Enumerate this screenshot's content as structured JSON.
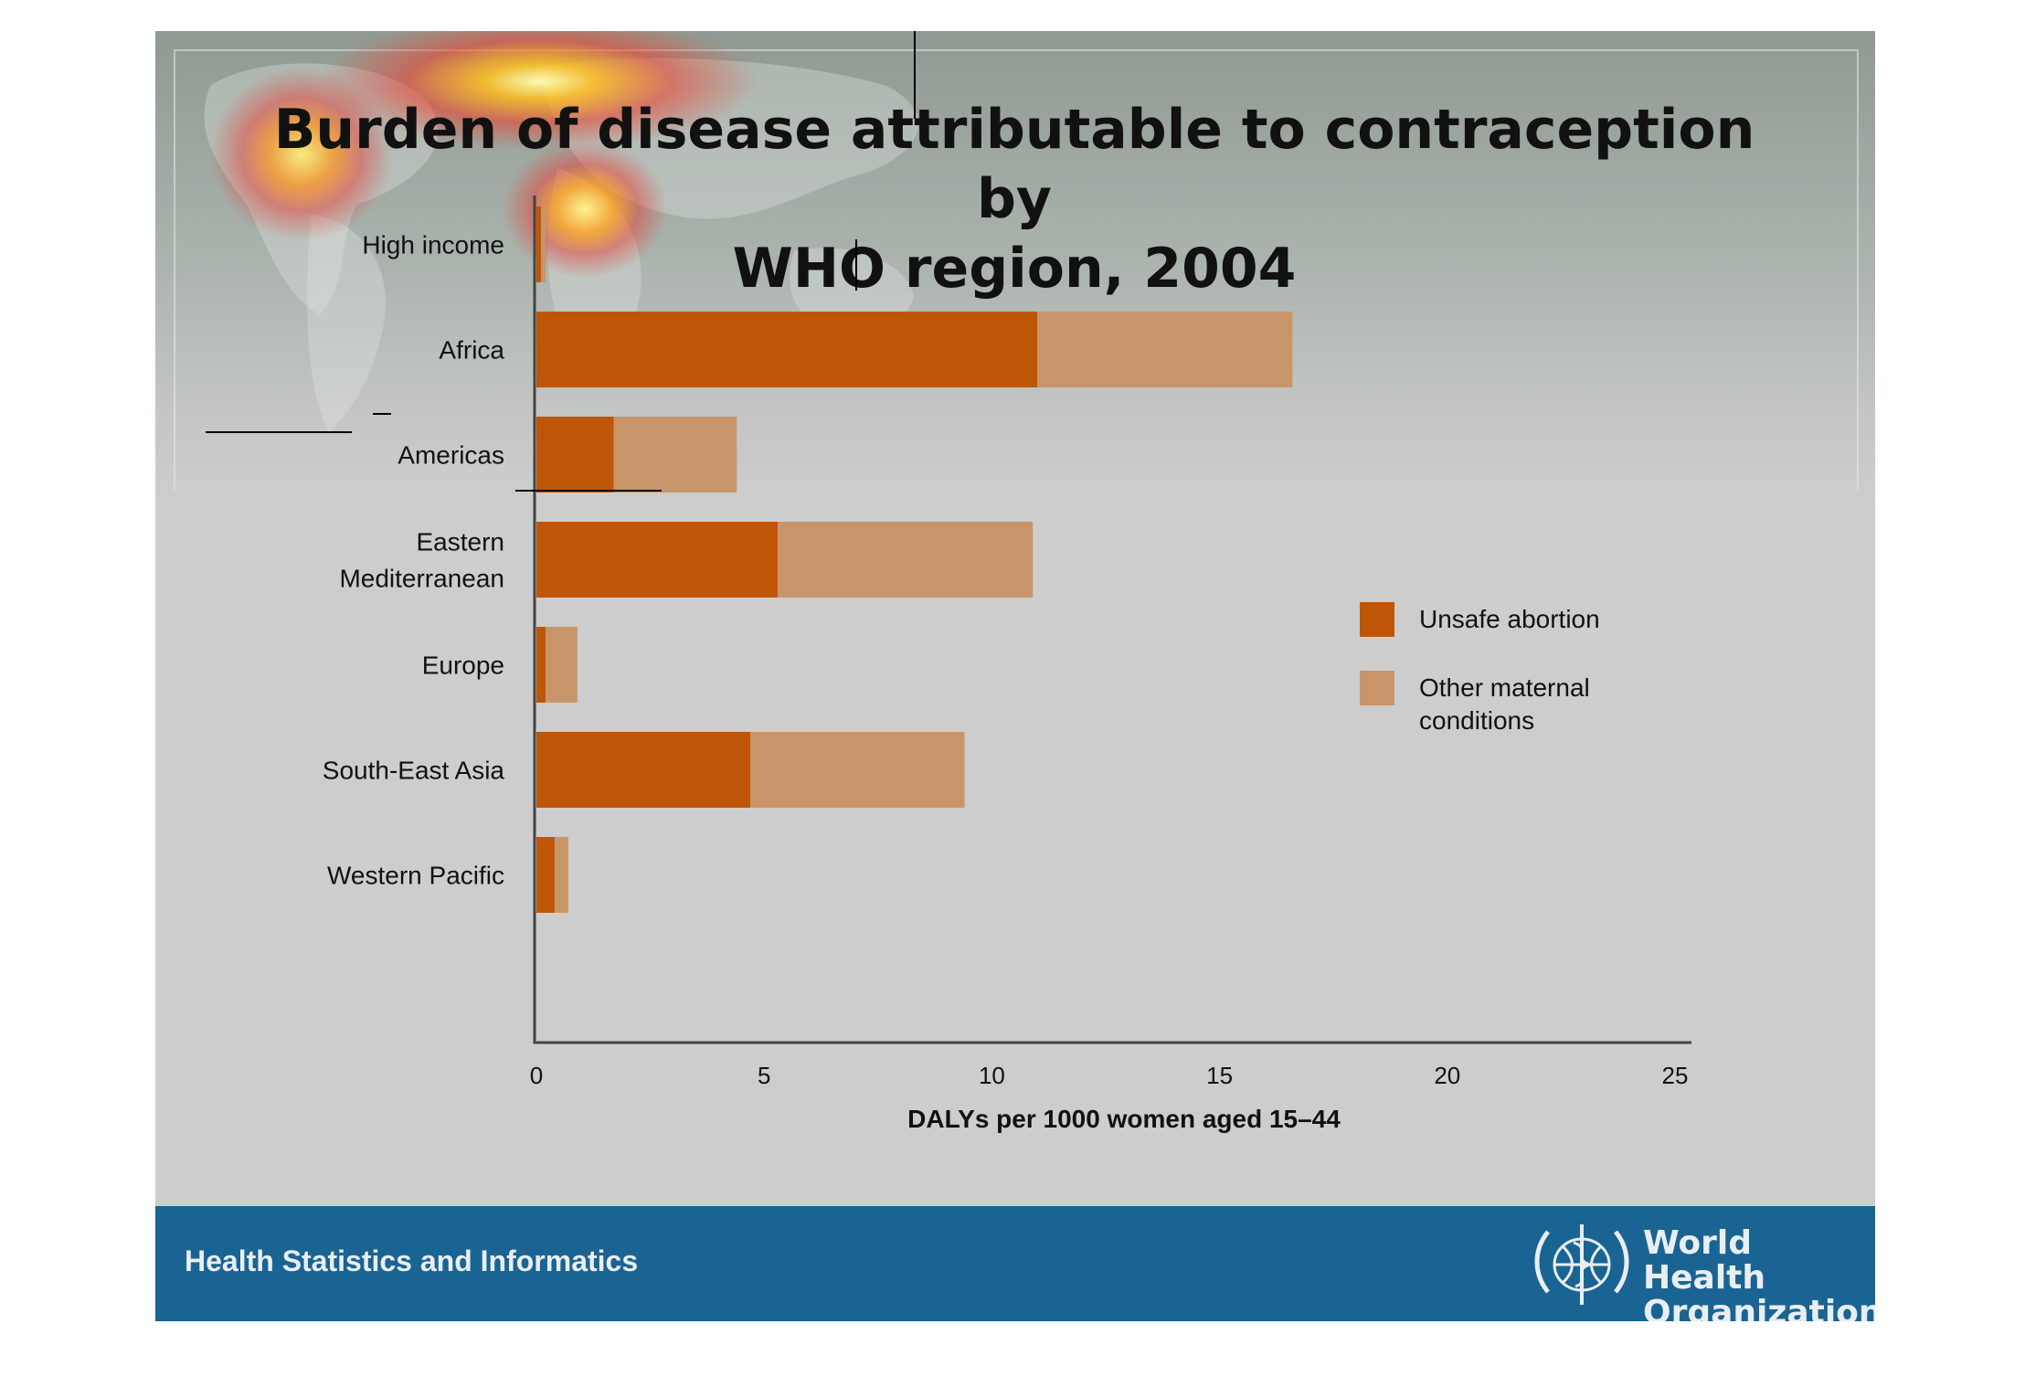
{
  "slide": {
    "title_line1": "Burden of disease attributable to contraception by",
    "title_line2": "WHO region, 2004"
  },
  "footer": {
    "department": "Health Statistics and Informatics",
    "org_line1": "World Health",
    "org_line2": "Organization",
    "logo_icon": "who-emblem-icon"
  },
  "colors": {
    "unsafe_abortion": "#bf5607",
    "other_maternal": "#c8956a",
    "footer_bg": "#1a6493"
  },
  "chart_data": {
    "type": "bar",
    "orientation": "horizontal",
    "stacked": true,
    "categories": [
      "High income",
      "Africa",
      "Americas",
      "Eastern Mediterranean",
      "Europe",
      "South-East Asia",
      "Western Pacific"
    ],
    "category_label_lines": [
      [
        "High income"
      ],
      [
        "Africa"
      ],
      [
        "Americas"
      ],
      [
        "Eastern",
        "Mediterranean"
      ],
      [
        "Europe"
      ],
      [
        "South-East Asia"
      ],
      [
        "Western Pacific"
      ]
    ],
    "series": [
      {
        "name": "Unsafe abortion",
        "values": [
          0.1,
          11.0,
          1.7,
          5.3,
          0.2,
          4.7,
          0.4
        ]
      },
      {
        "name": "Other maternal conditions",
        "values": [
          0.1,
          5.6,
          2.7,
          5.6,
          0.7,
          4.7,
          0.3
        ]
      }
    ],
    "legend_label_lines": [
      [
        "Unsafe abortion"
      ],
      [
        "Other maternal",
        "conditions"
      ]
    ],
    "xlabel": "DALYs per 1000 women aged 15–44",
    "ylabel": "",
    "xlim": [
      0,
      25
    ],
    "xticks": [
      0,
      5,
      10,
      15,
      20,
      25
    ],
    "grid": false,
    "legend_position": "right"
  }
}
